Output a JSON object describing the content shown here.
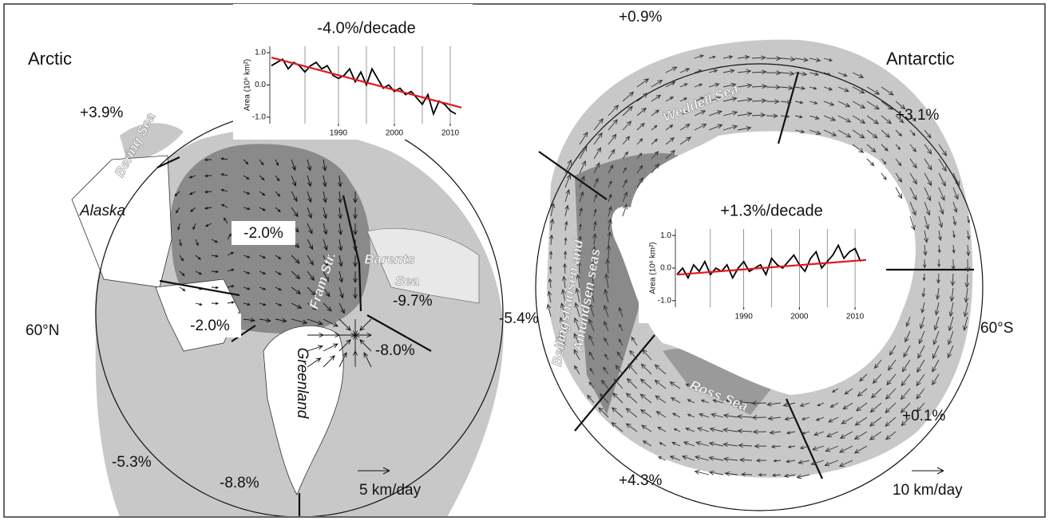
{
  "arctic": {
    "title": "Arctic",
    "latitude_label": "60°N",
    "scale_label": "5 km/day",
    "places": [
      "Alaska",
      "Greenland"
    ],
    "seas": [
      "Bering Sea",
      "Barents",
      "Sea",
      "Fram Str."
    ],
    "trends": [
      "+3.9%",
      "-2.0%",
      "-9.7%",
      "-2.0%",
      "-8.0%",
      "-5.3%",
      "-8.8%"
    ],
    "chart_data": {
      "type": "line",
      "title": "-4.0%/decade",
      "ylabel": "Area (10⁶ km²)",
      "x": [
        1978,
        1979,
        1980,
        1981,
        1982,
        1983,
        1984,
        1985,
        1986,
        1987,
        1988,
        1989,
        1990,
        1991,
        1992,
        1993,
        1994,
        1995,
        1996,
        1997,
        1998,
        1999,
        2000,
        2001,
        2002,
        2003,
        2004,
        2005,
        2006,
        2007,
        2008,
        2009,
        2010,
        2011
      ],
      "values": [
        0.6,
        0.7,
        0.8,
        0.5,
        0.7,
        0.6,
        0.4,
        0.6,
        0.7,
        0.5,
        0.6,
        0.3,
        0.2,
        0.3,
        0.5,
        0.1,
        0.4,
        0.0,
        0.5,
        0.2,
        -0.1,
        0.0,
        -0.2,
        -0.1,
        -0.3,
        -0.2,
        -0.4,
        -0.6,
        -0.3,
        -0.9,
        -0.5,
        -0.6,
        -0.8,
        -0.9
      ],
      "color": "#000000",
      "trend": {
        "x": [
          1978,
          2012
        ],
        "values": [
          0.85,
          -0.7
        ],
        "color": "#e8141c"
      },
      "xlim": [
        1978,
        2012
      ],
      "ylim": [
        -1.2,
        1.2
      ],
      "xticks": [
        1990,
        2000,
        2010
      ],
      "xgrid": [
        1984,
        1990,
        1995,
        2000,
        2005,
        2010
      ],
      "yticks": [
        {
          "value": 1,
          "label": "1.0"
        },
        {
          "value": 0,
          "label": "0.0"
        },
        {
          "value": -1,
          "label": "-1.0"
        }
      ]
    }
  },
  "antarctic": {
    "title": "Antarctic",
    "latitude_label": "60°S",
    "scale_label": "10 km/day",
    "seas": [
      "Weddell Sea",
      "Bellingshausen and",
      "Amundsen seas",
      "Ross Sea"
    ],
    "trends": [
      "+0.9%",
      "+3.1%",
      "-5.4%",
      "+0.1%",
      "+4.3%"
    ],
    "chart_data": {
      "type": "line",
      "title": "+1.3%/decade",
      "ylabel": "Area (10⁶ km²)",
      "x": [
        1978,
        1979,
        1980,
        1981,
        1982,
        1983,
        1984,
        1985,
        1986,
        1987,
        1988,
        1989,
        1990,
        1991,
        1992,
        1993,
        1994,
        1995,
        1996,
        1997,
        1998,
        1999,
        2000,
        2001,
        2002,
        2003,
        2004,
        2005,
        2006,
        2007,
        2008,
        2009,
        2010,
        2011
      ],
      "values": [
        -0.2,
        0.0,
        -0.3,
        0.1,
        -0.1,
        0.2,
        -0.2,
        0.0,
        -0.1,
        0.1,
        -0.3,
        0.0,
        0.2,
        -0.1,
        0.0,
        0.1,
        -0.2,
        0.3,
        0.1,
        0.0,
        0.2,
        0.4,
        0.1,
        -0.1,
        0.3,
        0.5,
        0.0,
        0.2,
        0.4,
        0.7,
        0.3,
        0.5,
        0.6,
        0.2
      ],
      "color": "#000000",
      "trend": {
        "x": [
          1978,
          2012
        ],
        "values": [
          -0.2,
          0.25
        ],
        "color": "#e8141c"
      },
      "xlim": [
        1978,
        2012
      ],
      "ylim": [
        -1.2,
        1.2
      ],
      "xticks": [
        1990,
        2000,
        2010
      ],
      "xgrid": [
        1984,
        1990,
        1995,
        2000,
        2005,
        2010
      ],
      "yticks": [
        {
          "value": 1,
          "label": "1.0"
        },
        {
          "value": 0,
          "label": "0.0"
        },
        {
          "value": -1,
          "label": "-1.0"
        }
      ]
    }
  }
}
